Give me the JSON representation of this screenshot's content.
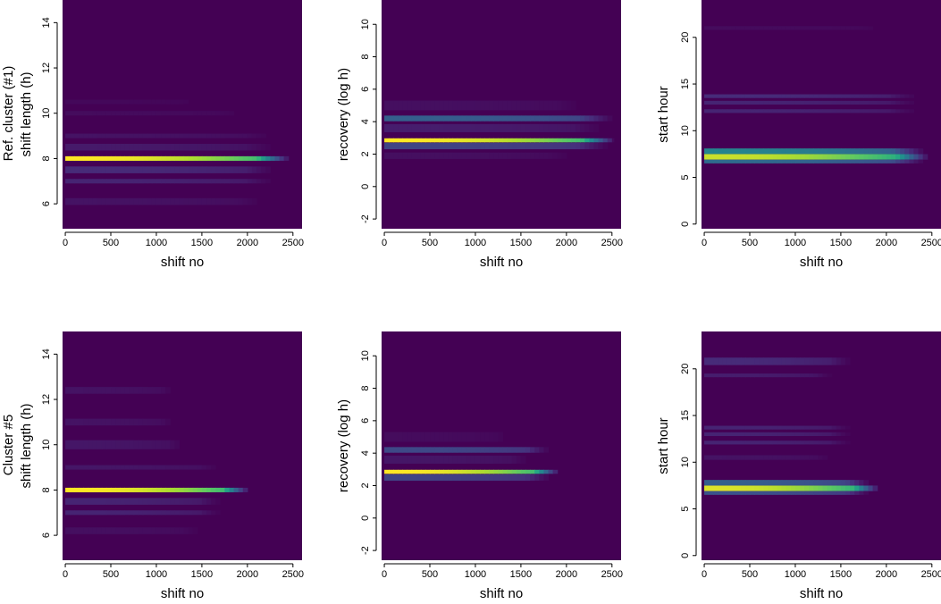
{
  "colors": {
    "background": "#440154",
    "axis": "#000000",
    "viridis": [
      "#440154",
      "#472d7b",
      "#3b528b",
      "#2c728e",
      "#21918c",
      "#28ae80",
      "#5ec962",
      "#addc30",
      "#fde725"
    ]
  },
  "row_titles": [
    "Ref. cluster (#1)",
    "Cluster #5"
  ],
  "chart_data": [
    {
      "type": "heatmap",
      "row": 0,
      "col": 0,
      "xlabel": "shift no",
      "ylabel": "shift length (h)",
      "xlim": [
        -30,
        2600
      ],
      "ylim": [
        4.9,
        15.0
      ],
      "xticks": [
        0,
        500,
        1000,
        1500,
        2000,
        2500
      ],
      "yticks": [
        6,
        8,
        10,
        12,
        14
      ],
      "bands": [
        {
          "y": 8.0,
          "h": 0.2,
          "peak": 1.0,
          "xend": 2450
        },
        {
          "y": 7.5,
          "h": 0.3,
          "peak": 0.12,
          "xend": 2300
        },
        {
          "y": 7.0,
          "h": 0.2,
          "peak": 0.1,
          "xend": 2300
        },
        {
          "y": 8.5,
          "h": 0.3,
          "peak": 0.07,
          "xend": 2300
        },
        {
          "y": 9.0,
          "h": 0.2,
          "peak": 0.05,
          "xend": 2300
        },
        {
          "y": 6.1,
          "h": 0.3,
          "peak": 0.05,
          "xend": 2200
        },
        {
          "y": 10.0,
          "h": 0.2,
          "peak": 0.03,
          "xend": 2000
        },
        {
          "y": 10.5,
          "h": 0.2,
          "peak": 0.02,
          "xend": 1500
        }
      ]
    },
    {
      "type": "heatmap",
      "row": 0,
      "col": 1,
      "xlabel": "shift no",
      "ylabel": "recovery (log h)",
      "xlim": [
        -30,
        2600
      ],
      "ylim": [
        -2.6,
        11.5
      ],
      "xticks": [
        0,
        500,
        1000,
        1500,
        2000,
        2500
      ],
      "yticks": [
        -2,
        0,
        2,
        4,
        6,
        8,
        10
      ],
      "bands": [
        {
          "y": 2.85,
          "h": 0.25,
          "peak": 1.0,
          "xend": 2520
        },
        {
          "y": 2.5,
          "h": 0.4,
          "peak": 0.2,
          "xend": 2450
        },
        {
          "y": 4.2,
          "h": 0.35,
          "peak": 0.3,
          "xend": 2500
        },
        {
          "y": 3.6,
          "h": 0.5,
          "peak": 0.08,
          "xend": 2400
        },
        {
          "y": 5.0,
          "h": 0.6,
          "peak": 0.04,
          "xend": 2200
        },
        {
          "y": 1.9,
          "h": 0.4,
          "peak": 0.04,
          "xend": 2100
        }
      ]
    },
    {
      "type": "heatmap",
      "row": 0,
      "col": 2,
      "xlabel": "shift no",
      "ylabel": "start hour",
      "xlim": [
        -30,
        2600
      ],
      "ylim": [
        -0.5,
        24.0
      ],
      "xticks": [
        0,
        500,
        1000,
        1500,
        2000,
        2500
      ],
      "yticks": [
        0,
        5,
        10,
        15,
        20
      ],
      "bands": [
        {
          "y": 7.2,
          "h": 0.6,
          "peak": 0.92,
          "xend": 2450
        },
        {
          "y": 7.8,
          "h": 0.6,
          "peak": 0.45,
          "xend": 2400
        },
        {
          "y": 6.7,
          "h": 0.4,
          "peak": 0.35,
          "xend": 2400
        },
        {
          "y": 13.7,
          "h": 0.4,
          "peak": 0.12,
          "xend": 2350
        },
        {
          "y": 13.0,
          "h": 0.4,
          "peak": 0.1,
          "xend": 2350
        },
        {
          "y": 12.1,
          "h": 0.4,
          "peak": 0.1,
          "xend": 2350
        },
        {
          "y": 21.0,
          "h": 0.4,
          "peak": 0.03,
          "xend": 2000
        }
      ]
    },
    {
      "type": "heatmap",
      "row": 1,
      "col": 0,
      "xlabel": "shift no",
      "ylabel": "shift length (h)",
      "xlim": [
        -30,
        2600
      ],
      "ylim": [
        4.9,
        15.0
      ],
      "xticks": [
        0,
        500,
        1000,
        1500,
        2000,
        2500
      ],
      "yticks": [
        6,
        8,
        10,
        12,
        14
      ],
      "bands": [
        {
          "y": 8.0,
          "h": 0.2,
          "peak": 1.0,
          "xend": 2000
        },
        {
          "y": 7.5,
          "h": 0.3,
          "peak": 0.1,
          "xend": 1700
        },
        {
          "y": 7.0,
          "h": 0.2,
          "peak": 0.1,
          "xend": 1700
        },
        {
          "y": 9.0,
          "h": 0.2,
          "peak": 0.06,
          "xend": 1700
        },
        {
          "y": 10.0,
          "h": 0.4,
          "peak": 0.06,
          "xend": 1300
        },
        {
          "y": 11.0,
          "h": 0.3,
          "peak": 0.05,
          "xend": 1200
        },
        {
          "y": 12.4,
          "h": 0.3,
          "peak": 0.05,
          "xend": 1200
        },
        {
          "y": 6.2,
          "h": 0.3,
          "peak": 0.04,
          "xend": 1500
        }
      ]
    },
    {
      "type": "heatmap",
      "row": 1,
      "col": 1,
      "xlabel": "shift no",
      "ylabel": "recovery (log h)",
      "xlim": [
        -30,
        2600
      ],
      "ylim": [
        -2.6,
        11.5
      ],
      "xticks": [
        0,
        500,
        1000,
        1500,
        2000,
        2500
      ],
      "yticks": [
        -2,
        0,
        2,
        4,
        6,
        8,
        10
      ],
      "bands": [
        {
          "y": 2.85,
          "h": 0.25,
          "peak": 1.0,
          "xend": 1900
        },
        {
          "y": 2.5,
          "h": 0.4,
          "peak": 0.2,
          "xend": 1800
        },
        {
          "y": 4.2,
          "h": 0.35,
          "peak": 0.22,
          "xend": 1800
        },
        {
          "y": 3.6,
          "h": 0.5,
          "peak": 0.06,
          "xend": 1600
        },
        {
          "y": 5.0,
          "h": 0.6,
          "peak": 0.03,
          "xend": 1400
        }
      ]
    },
    {
      "type": "heatmap",
      "row": 1,
      "col": 2,
      "xlabel": "shift no",
      "ylabel": "start hour",
      "xlim": [
        -30,
        2600
      ],
      "ylim": [
        -0.5,
        24.0
      ],
      "xticks": [
        0,
        500,
        1000,
        1500,
        2000,
        2500
      ],
      "yticks": [
        0,
        5,
        10,
        15,
        20
      ],
      "bands": [
        {
          "y": 7.2,
          "h": 0.6,
          "peak": 0.95,
          "xend": 1900
        },
        {
          "y": 7.8,
          "h": 0.6,
          "peak": 0.3,
          "xend": 1800
        },
        {
          "y": 6.7,
          "h": 0.4,
          "peak": 0.25,
          "xend": 1800
        },
        {
          "y": 20.8,
          "h": 0.8,
          "peak": 0.12,
          "xend": 1600
        },
        {
          "y": 19.3,
          "h": 0.4,
          "peak": 0.08,
          "xend": 1400
        },
        {
          "y": 13.7,
          "h": 0.4,
          "peak": 0.1,
          "xend": 1600
        },
        {
          "y": 13.0,
          "h": 0.4,
          "peak": 0.1,
          "xend": 1600
        },
        {
          "y": 12.1,
          "h": 0.4,
          "peak": 0.1,
          "xend": 1600
        },
        {
          "y": 10.5,
          "h": 0.5,
          "peak": 0.05,
          "xend": 1400
        }
      ]
    }
  ]
}
